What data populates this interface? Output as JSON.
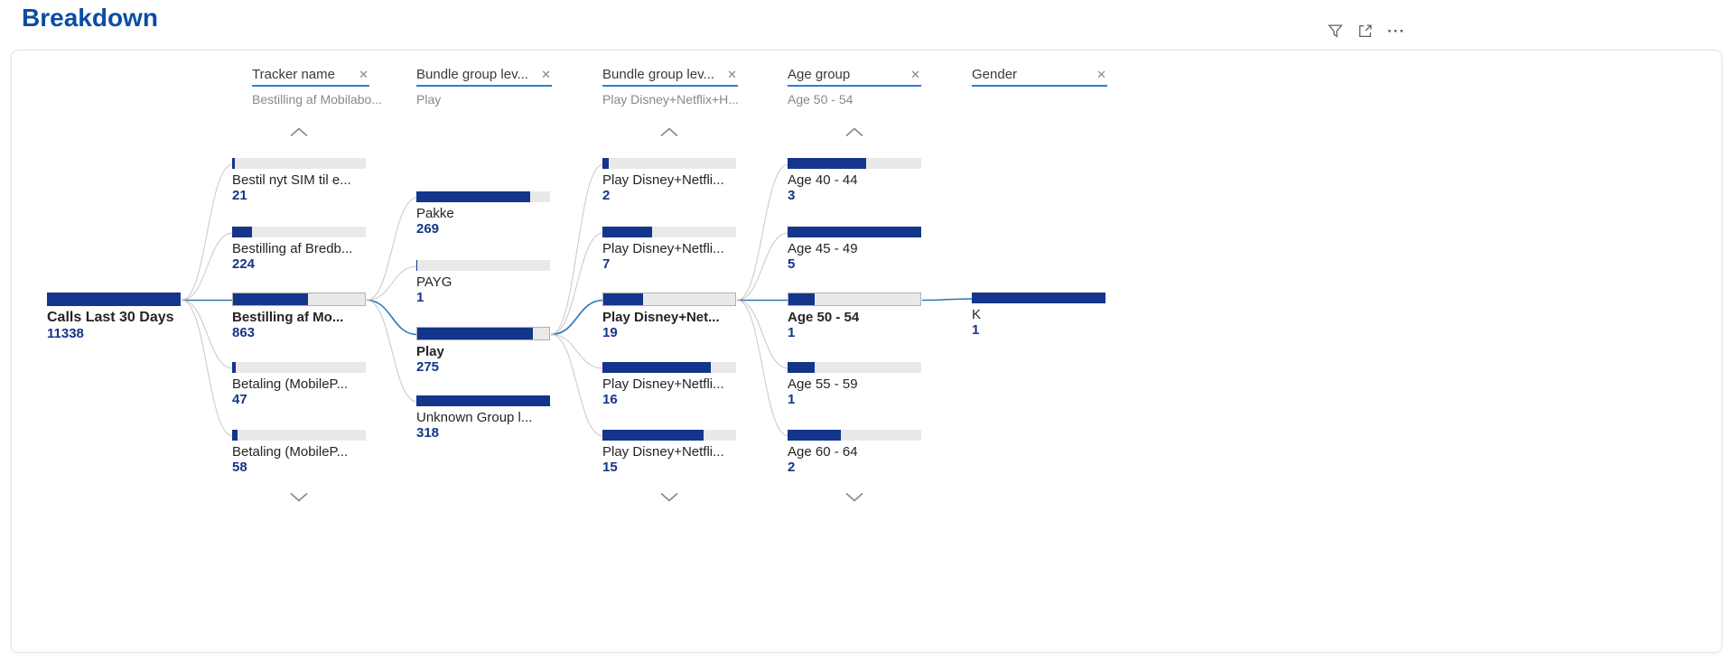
{
  "title": "Breakdown",
  "icons": {
    "close": "✕",
    "more": "···",
    "filter": "funnel-icon",
    "focus_mode": "focus-mode-icon",
    "chevron_up": "chevron-up-icon",
    "chevron_down": "chevron-down-icon"
  },
  "colors": {
    "title": "#0B4DA2",
    "bar_fill": "#14358C",
    "value_text": "#14358C",
    "underline": "#2E7CD6",
    "link_blue": "#2E75B6",
    "link_gray": "#C9C7C5",
    "track": "#E9E9E9",
    "selected_border": "#B3B0AD",
    "label_text": "#252423",
    "muted_text": "#8A8886",
    "icon_gray": "#605E5C"
  },
  "root": {
    "label": "Calls Last 30 Days",
    "value": "11338",
    "fill_pct": 100,
    "on_path": true
  },
  "columns": [
    {
      "header": "Tracker name",
      "subtitle": "Bestilling af Mobilabo...",
      "nodes": [
        {
          "label": "Bestil nyt SIM til e...",
          "value": "21",
          "fill_pct": 2,
          "selected": false,
          "on_path": false
        },
        {
          "label": "Bestilling af Bredb...",
          "value": "224",
          "fill_pct": 15,
          "selected": false,
          "on_path": false
        },
        {
          "label": "Bestilling af Mo...",
          "value": "863",
          "fill_pct": 57,
          "selected": true,
          "on_path": true
        },
        {
          "label": "Betaling (MobileP...",
          "value": "47",
          "fill_pct": 3,
          "selected": false,
          "on_path": false
        },
        {
          "label": "Betaling (MobileP...",
          "value": "58",
          "fill_pct": 4,
          "selected": false,
          "on_path": false
        }
      ]
    },
    {
      "header": "Bundle group lev...",
      "subtitle": "Play",
      "nodes": [
        {
          "label": "Pakke",
          "value": "269",
          "fill_pct": 85,
          "selected": false,
          "on_path": false
        },
        {
          "label": "PAYG",
          "value": "1",
          "fill_pct": 1,
          "selected": false,
          "on_path": false
        },
        {
          "label": "Play",
          "value": "275",
          "fill_pct": 88,
          "selected": true,
          "on_path": true
        },
        {
          "label": "Unknown Group l...",
          "value": "318",
          "fill_pct": 100,
          "selected": false,
          "on_path": false
        }
      ]
    },
    {
      "header": "Bundle group lev...",
      "subtitle": "Play Disney+Netflix+H...",
      "nodes": [
        {
          "label": "Play Disney+Netfli...",
          "value": "2",
          "fill_pct": 5,
          "selected": false,
          "on_path": false
        },
        {
          "label": "Play Disney+Netfli...",
          "value": "7",
          "fill_pct": 37,
          "selected": false,
          "on_path": false
        },
        {
          "label": "Play Disney+Net...",
          "value": "19",
          "fill_pct": 30,
          "selected": true,
          "on_path": true
        },
        {
          "label": "Play Disney+Netfli...",
          "value": "16",
          "fill_pct": 81,
          "selected": false,
          "on_path": false
        },
        {
          "label": "Play Disney+Netfli...",
          "value": "15",
          "fill_pct": 76,
          "selected": false,
          "on_path": false
        }
      ]
    },
    {
      "header": "Age group",
      "subtitle": "Age 50 - 54",
      "nodes": [
        {
          "label": "Age 40 - 44",
          "value": "3",
          "fill_pct": 59,
          "selected": false,
          "on_path": false
        },
        {
          "label": "Age 45 - 49",
          "value": "5",
          "fill_pct": 100,
          "selected": false,
          "on_path": false
        },
        {
          "label": "Age 50 - 54",
          "value": "1",
          "fill_pct": 20,
          "selected": true,
          "on_path": true
        },
        {
          "label": "Age 55 - 59",
          "value": "1",
          "fill_pct": 20,
          "selected": false,
          "on_path": false
        },
        {
          "label": "Age 60 - 64",
          "value": "2",
          "fill_pct": 40,
          "selected": false,
          "on_path": false
        }
      ]
    },
    {
      "header": "Gender",
      "subtitle": "",
      "nodes": [
        {
          "label": "K",
          "value": "1",
          "fill_pct": 100,
          "selected": false,
          "on_path": true
        }
      ]
    }
  ],
  "chart_data": {
    "type": "table",
    "visual": "decomposition-tree",
    "title": "Breakdown",
    "measure": "Calls Last 30 Days",
    "root_value": 11338,
    "levels": [
      {
        "field": "Tracker name",
        "selected": "Bestilling af Mo...",
        "scrollable": true,
        "items": [
          {
            "label": "Bestil nyt SIM til e...",
            "value": 21
          },
          {
            "label": "Bestilling af Bredb...",
            "value": 224
          },
          {
            "label": "Bestilling af Mo...",
            "value": 863
          },
          {
            "label": "Betaling (MobileP...",
            "value": 47
          },
          {
            "label": "Betaling (MobileP...",
            "value": 58
          }
        ]
      },
      {
        "field": "Bundle group lev...",
        "selected": "Play",
        "scrollable": false,
        "items": [
          {
            "label": "Pakke",
            "value": 269
          },
          {
            "label": "PAYG",
            "value": 1
          },
          {
            "label": "Play",
            "value": 275
          },
          {
            "label": "Unknown Group l...",
            "value": 318
          }
        ]
      },
      {
        "field": "Bundle group lev...",
        "selected": "Play Disney+Net...",
        "scrollable": true,
        "items": [
          {
            "label": "Play Disney+Netfli...",
            "value": 2
          },
          {
            "label": "Play Disney+Netfli...",
            "value": 7
          },
          {
            "label": "Play Disney+Net...",
            "value": 19
          },
          {
            "label": "Play Disney+Netfli...",
            "value": 16
          },
          {
            "label": "Play Disney+Netfli...",
            "value": 15
          }
        ]
      },
      {
        "field": "Age group",
        "selected": "Age 50 - 54",
        "scrollable": true,
        "items": [
          {
            "label": "Age 40 - 44",
            "value": 3
          },
          {
            "label": "Age 45 - 49",
            "value": 5
          },
          {
            "label": "Age 50 - 54",
            "value": 1
          },
          {
            "label": "Age 55 - 59",
            "value": 1
          },
          {
            "label": "Age 60 - 64",
            "value": 2
          }
        ]
      },
      {
        "field": "Gender",
        "selected": "",
        "scrollable": false,
        "items": [
          {
            "label": "K",
            "value": 1
          }
        ]
      }
    ]
  }
}
